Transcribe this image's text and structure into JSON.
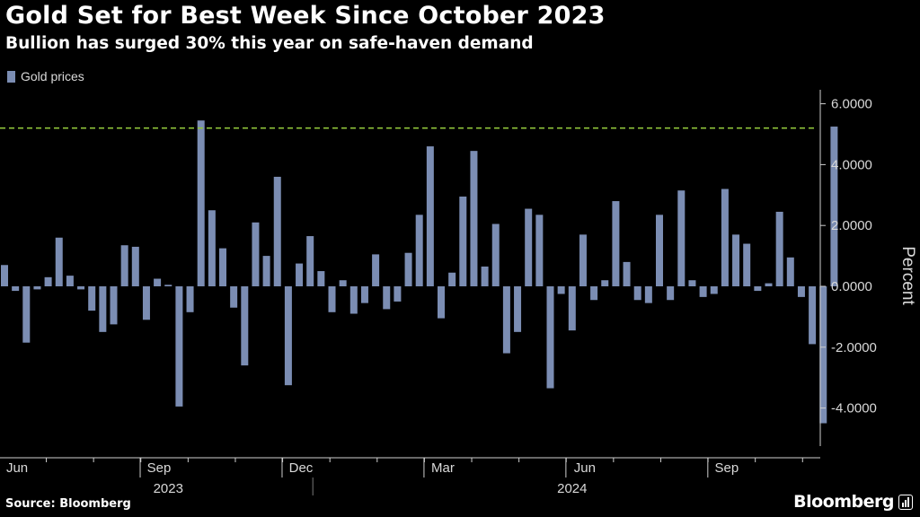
{
  "title": "Gold Set for Best Week Since October 2023",
  "subtitle": "Bullion has surged 30% this year on safe-haven demand",
  "source": "Source: Bloomberg",
  "brand": "Bloomberg",
  "colors": {
    "bar": "#7b8db3",
    "reference_line": "#8fc43a",
    "background": "#000000"
  },
  "chart_data": {
    "type": "bar",
    "title": "Gold Set for Best Week Since October 2023",
    "subtitle": "Bullion has surged 30% this year on safe-haven demand",
    "series": [
      {
        "name": "Gold prices",
        "values": [
          0.7,
          -0.15,
          -1.85,
          -0.1,
          0.3,
          1.6,
          0.35,
          -0.1,
          -0.8,
          -1.5,
          -1.25,
          1.35,
          1.3,
          -1.1,
          0.25,
          0.05,
          -3.95,
          -0.85,
          5.45,
          2.5,
          1.25,
          -0.7,
          -2.6,
          2.1,
          1.0,
          3.6,
          -3.25,
          0.75,
          1.65,
          0.5,
          -0.85,
          0.2,
          -0.9,
          -0.55,
          1.05,
          -0.75,
          -0.5,
          1.1,
          2.35,
          4.6,
          -1.05,
          0.45,
          2.95,
          4.45,
          0.65,
          2.05,
          -2.2,
          -1.5,
          2.55,
          2.35,
          -3.35,
          -0.25,
          -1.45,
          1.7,
          -0.45,
          0.2,
          2.8,
          0.8,
          -0.45,
          -0.55,
          2.35,
          -0.45,
          3.15,
          0.2,
          -0.35,
          -0.25,
          3.2,
          1.7,
          1.4,
          -0.15,
          0.1,
          2.45,
          0.95,
          -0.35,
          -1.9,
          -4.5,
          5.25
        ]
      }
    ],
    "reference_line": 5.2,
    "ylabel": "Percent",
    "ylim": [
      -5.0,
      6.0
    ],
    "y_ticks": [
      6.0,
      4.0,
      2.0,
      0.0,
      -2.0,
      -4.0
    ],
    "y_tick_labels": [
      "6.0000",
      "4.0000",
      "2.0000",
      "0.0000",
      "-2.0000",
      "-4.0000"
    ],
    "x_tick_labels": [
      {
        "label": "Jun",
        "index": 0.5
      },
      {
        "label": "Sep",
        "index": 13.5
      },
      {
        "label": "Dec",
        "index": 26.5
      },
      {
        "label": "Mar",
        "index": 39.5
      },
      {
        "label": "Jun",
        "index": 52.5
      },
      {
        "label": "Sep",
        "index": 65.5
      }
    ],
    "year_labels": [
      {
        "label": "2023",
        "index": 15
      },
      {
        "label": "2024",
        "index": 52
      }
    ],
    "year_divider_index": 28,
    "legend_position": "top-left",
    "grid": false
  }
}
